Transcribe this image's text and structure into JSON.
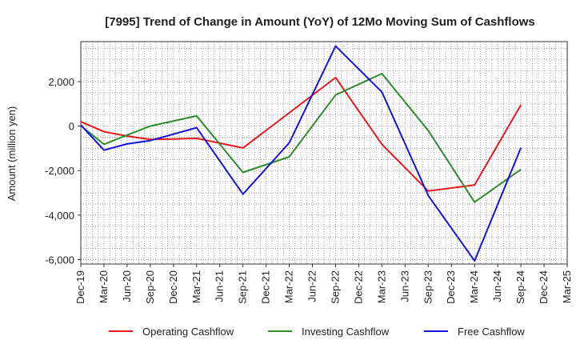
{
  "chart_data": {
    "type": "line",
    "title": "[7995]  Trend of Change in Amount (YoY) of 12Mo Moving Sum of Cashflows",
    "xlabel": "",
    "ylabel": "Amount (million yen)",
    "ylim": [
      -6200,
      3800
    ],
    "yticks": [
      2000,
      0,
      -2000,
      -4000,
      -6000
    ],
    "ytick_labels": [
      "2,000",
      "0",
      "-2,000",
      "-4,000",
      "-6,000"
    ],
    "grid": true,
    "legend_position": "bottom",
    "categories": [
      "Dec-19",
      "Mar-20",
      "Jun-20",
      "Sep-20",
      "Dec-20",
      "Mar-21",
      "Jun-21",
      "Sep-21",
      "Dec-21",
      "Mar-22",
      "Jun-22",
      "Sep-22",
      "Dec-22",
      "Mar-23",
      "Jun-23",
      "Sep-23",
      "Dec-23",
      "Mar-24",
      "Jun-24",
      "Sep-24",
      "Dec-24",
      "Mar-25"
    ],
    "series": [
      {
        "name": "Operating Cashflow",
        "color": "#e8191b",
        "values": [
          200,
          -250,
          -450,
          -600,
          -580,
          -550,
          null,
          -980,
          null,
          600,
          null,
          2180,
          null,
          -820,
          null,
          -2920,
          null,
          -2650,
          null,
          950,
          null,
          null
        ]
      },
      {
        "name": "Investing Cashflow",
        "color": "#2e8b2e",
        "values": [
          20,
          -820,
          -400,
          0,
          null,
          460,
          null,
          -2080,
          null,
          -1380,
          null,
          1400,
          null,
          2360,
          null,
          -200,
          null,
          -3420,
          null,
          -1950,
          null,
          null
        ]
      },
      {
        "name": "Free Cashflow",
        "color": "#1414d8",
        "values": [
          50,
          -1080,
          -800,
          -650,
          null,
          -70,
          null,
          -3060,
          null,
          -750,
          null,
          3600,
          null,
          1530,
          null,
          -3120,
          null,
          -6060,
          null,
          -980,
          null,
          null
        ]
      }
    ]
  }
}
